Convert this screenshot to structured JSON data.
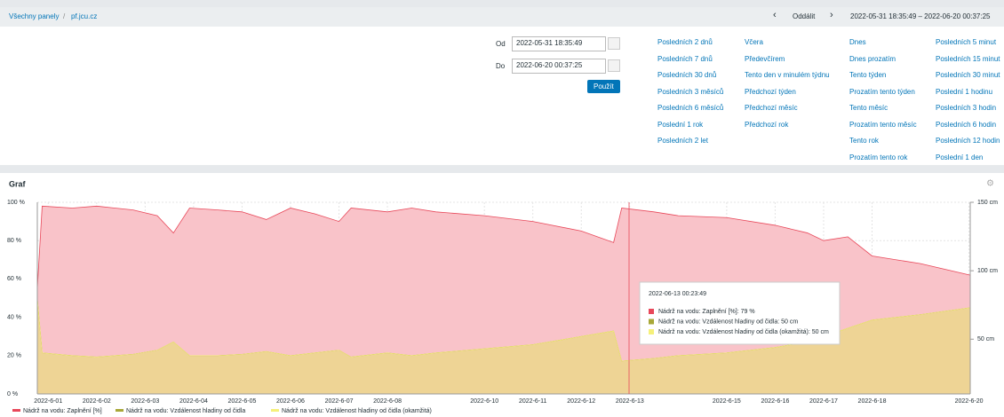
{
  "breadcrumb": [
    "Všechny panely",
    "pf.jcu.cz"
  ],
  "nav": {
    "zoom_out": "Oddálit",
    "range": "2022-05-31 18:35:49 – 2022-06-20 00:37:25"
  },
  "time_picker": {
    "from_label": "Od",
    "from": "2022-05-31 18:35:49",
    "to_label": "Do",
    "to": "2022-06-20 00:37:25",
    "apply": "Použít",
    "shortcuts": [
      [
        "Posledních 2 dnů",
        "Posledních 7 dnů",
        "Posledních 30 dnů",
        "Posledních 3 měsíců",
        "Posledních 6 měsíců",
        "Poslední 1 rok",
        "Posledních 2 let"
      ],
      [
        "Včera",
        "Předevčírem",
        "Tento den v minulém týdnu",
        "Předchozí týden",
        "Předchozí měsíc",
        "Předchozí rok"
      ],
      [
        "Dnes",
        "Dnes prozatím",
        "Tento týden",
        "Prozatím tento týden",
        "Tento měsíc",
        "Prozatím tento měsíc",
        "Tento rok",
        "Prozatím tento rok"
      ],
      [
        "Posledních 5 minut",
        "Posledních 15 minut",
        "Posledních 30 minut",
        "Poslední 1 hodinu",
        "Posledních 3 hodin",
        "Posledních 6 hodin",
        "Posledních 12 hodin",
        "Poslední 1 den"
      ]
    ]
  },
  "chart_data": {
    "type": "area",
    "title": "Graf",
    "x": [
      "2022-05-31 18:36",
      "2022-05-31 21:00",
      "2022-06-01 12:00",
      "2022-06-02 00:00",
      "2022-06-02 18:00",
      "2022-06-03 06:00",
      "2022-06-03 14:00",
      "2022-06-03 22:00",
      "2022-06-04 12:00",
      "2022-06-05 00:00",
      "2022-06-05 12:00",
      "2022-06-06 00:00",
      "2022-06-06 12:00",
      "2022-06-07 00:00",
      "2022-06-07 06:00",
      "2022-06-08 00:00",
      "2022-06-08 12:00",
      "2022-06-09 00:00",
      "2022-06-10 00:00",
      "2022-06-11 00:00",
      "2022-06-12 00:00",
      "2022-06-12 16:00",
      "2022-06-12 20:00",
      "2022-06-13 12:00",
      "2022-06-14 00:00",
      "2022-06-15 00:00",
      "2022-06-16 00:00",
      "2022-06-16 16:00",
      "2022-06-17 00:00",
      "2022-06-17 12:00",
      "2022-06-18 00:00",
      "2022-06-19 00:00",
      "2022-06-20 00:37"
    ],
    "series": [
      {
        "name": "Nádrž na vodu: Zaplnění [%]",
        "color": "#e8485a",
        "fill": "#f9c3c9",
        "values": [
          55,
          98,
          97,
          98,
          96,
          93,
          84,
          97,
          96,
          95,
          91,
          97,
          94,
          90,
          97,
          95,
          97,
          95,
          93,
          90,
          85,
          79,
          97,
          95,
          93,
          92,
          88,
          84,
          80,
          82,
          72,
          68,
          62
        ]
      },
      {
        "name": "Nádrž na vodu: Vzdálenost hladiny od čidla",
        "color": "#a8a838",
        "fill": "#eed495",
        "axis": "y2",
        "values": [
          80,
          40,
          38,
          37,
          39,
          42,
          48,
          38,
          38,
          39,
          41,
          38,
          40,
          42,
          37,
          40,
          38,
          40,
          43,
          46,
          52,
          56,
          34,
          36,
          38,
          40,
          44,
          48,
          52,
          58,
          64,
          68,
          73
        ]
      },
      {
        "name": "Nádrž na vodu: Vzdálenost hladiny od čidla (okamžitá)",
        "color": "#f5f07a",
        "axis": "y2",
        "values": [
          80,
          40,
          38,
          37,
          39,
          42,
          48,
          38,
          38,
          39,
          41,
          38,
          40,
          42,
          37,
          40,
          38,
          40,
          43,
          46,
          52,
          56,
          34,
          36,
          38,
          40,
          44,
          48,
          52,
          58,
          64,
          68,
          73
        ]
      }
    ],
    "xlim": [
      "2022-05-31 18:36",
      "2022-06-20 00:37"
    ],
    "xticks": [
      {
        "value": "2022-06-01 00:00",
        "label": "2022-6-01"
      },
      {
        "value": "2022-06-02 00:00",
        "label": "2022-6-02"
      },
      {
        "value": "2022-06-03 00:00",
        "label": "2022-6-03"
      },
      {
        "value": "2022-06-04 00:00",
        "label": "2022-6-04"
      },
      {
        "value": "2022-06-05 00:00",
        "label": "2022-6-05"
      },
      {
        "value": "2022-06-06 00:00",
        "label": "2022-6-06"
      },
      {
        "value": "2022-06-07 00:00",
        "label": "2022-6-07"
      },
      {
        "value": "2022-06-08 00:00",
        "label": "2022-6-08"
      },
      {
        "value": "2022-06-10 00:00",
        "label": "2022-6-10"
      },
      {
        "value": "2022-06-11 00:00",
        "label": "2022-6-11"
      },
      {
        "value": "2022-06-12 00:00",
        "label": "2022-6-12"
      },
      {
        "value": "2022-06-13 00:00",
        "label": "2022-6-13"
      },
      {
        "value": "2022-06-15 00:00",
        "label": "2022-6-15"
      },
      {
        "value": "2022-06-16 00:00",
        "label": "2022-6-16"
      },
      {
        "value": "2022-06-17 00:00",
        "label": "2022-6-17"
      },
      {
        "value": "2022-06-18 00:00",
        "label": "2022-6-18"
      },
      {
        "value": "2022-06-20 00:00",
        "label": "2022-6-20"
      }
    ],
    "ylim": [
      0,
      100
    ],
    "yticks": [
      {
        "value": 0,
        "label": "0 %"
      },
      {
        "value": 20,
        "label": "20 %"
      },
      {
        "value": 40,
        "label": "40 %"
      },
      {
        "value": 60,
        "label": "60 %"
      },
      {
        "value": 80,
        "label": "80 %"
      },
      {
        "value": 100,
        "label": "100 %"
      }
    ],
    "y2lim": [
      10,
      150
    ],
    "y2ticks": [
      {
        "value": 50,
        "label": "50 cm"
      },
      {
        "value": 100,
        "label": "100 cm"
      },
      {
        "value": 150,
        "label": "150 cm"
      }
    ],
    "grid": true,
    "tooltip": {
      "title": "2022-06-13 00:23:49",
      "items": [
        "Nádrž na vodu: Zaplnění [%]: 79 %",
        "Nádrž na vodu: Vzdálenost hladiny od čidla: 50 cm",
        "Nádrž na vodu: Vzdálenost hladiny od čidla (okamžitá): 50 cm"
      ]
    }
  }
}
